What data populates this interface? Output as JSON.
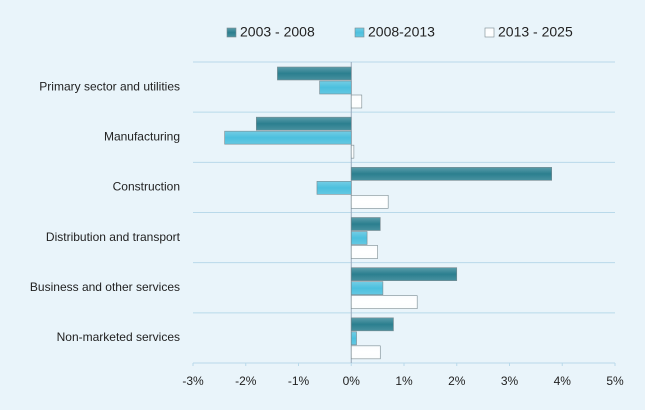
{
  "chart_data": {
    "type": "hbar",
    "categories": [
      "Primary sector and utilities",
      "Manufacturing",
      "Construction",
      "Distribution and transport",
      "Business and other services",
      "Non-marketed services"
    ],
    "series": [
      {
        "name": "2003 - 2008",
        "color": "#2b7f8f",
        "values": [
          -1.4,
          -1.8,
          3.8,
          0.55,
          2.0,
          0.8
        ]
      },
      {
        "name": "2008-2013",
        "color": "#4cc0de",
        "values": [
          -0.6,
          -2.4,
          -0.65,
          0.3,
          0.6,
          0.1
        ]
      },
      {
        "name": "2013 - 2025",
        "color": "#ffffff",
        "values": [
          0.2,
          0.05,
          0.7,
          0.5,
          1.25,
          0.55
        ]
      }
    ],
    "xlim": [
      -3,
      5
    ],
    "xticks": [
      {
        "value": -3,
        "label": "-3%"
      },
      {
        "value": -2,
        "label": "-2%"
      },
      {
        "value": -1,
        "label": "-1%"
      },
      {
        "value": 0,
        "label": "0%"
      },
      {
        "value": 1,
        "label": "1%"
      },
      {
        "value": 2,
        "label": "2%"
      },
      {
        "value": 3,
        "label": "3%"
      },
      {
        "value": 4,
        "label": "4%"
      },
      {
        "value": 5,
        "label": "5%"
      }
    ],
    "legend": "top"
  }
}
